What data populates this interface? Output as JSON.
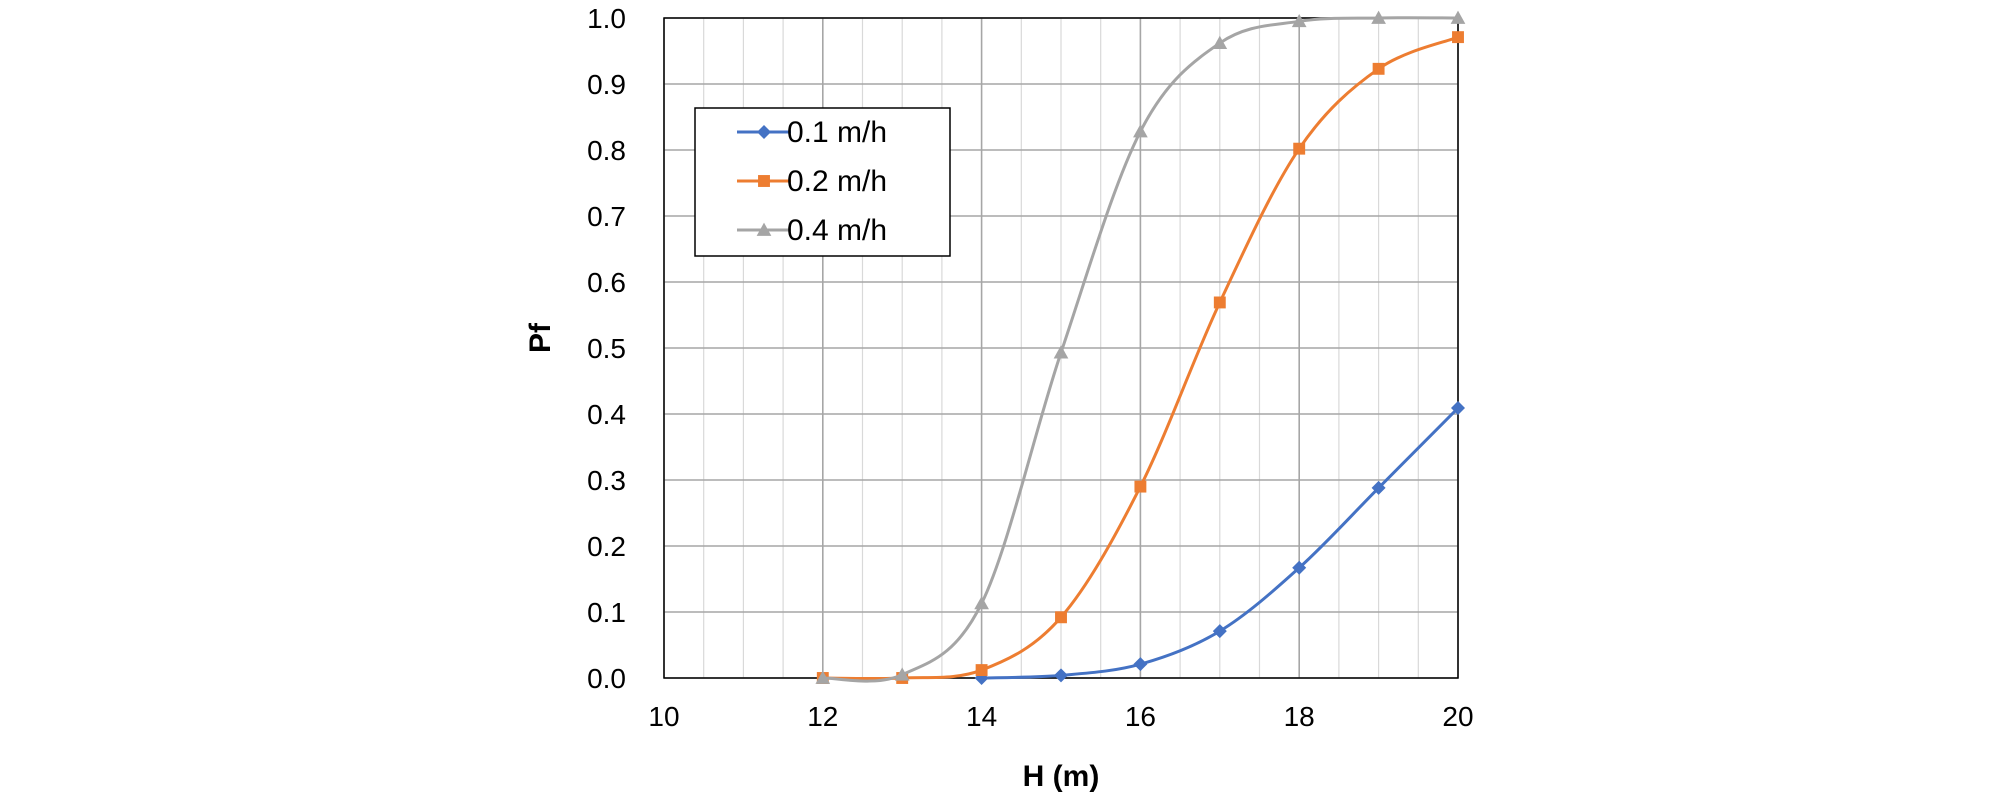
{
  "chart_data": {
    "type": "line",
    "xlabel": "H (m)",
    "ylabel": "Pf",
    "xlim": [
      10,
      20
    ],
    "ylim": [
      0,
      1
    ],
    "x_ticks": [
      "10",
      "12",
      "14",
      "16",
      "18",
      "20"
    ],
    "y_ticks": [
      "0.0",
      "0.1",
      "0.2",
      "0.3",
      "0.4",
      "0.5",
      "0.6",
      "0.7",
      "0.8",
      "0.9",
      "1.0"
    ],
    "x_minor_step": 0.5,
    "grid": true,
    "legend_position": "top-left",
    "series": [
      {
        "name": "0.1 m/h",
        "color": "#4472C4",
        "marker": "diamond",
        "x": [
          14,
          15,
          16,
          17,
          18,
          19,
          20
        ],
        "y": [
          0.0,
          0.004,
          0.021,
          0.071,
          0.167,
          0.288,
          0.409
        ]
      },
      {
        "name": "0.2 m/h",
        "color": "#ED7D31",
        "marker": "square",
        "x": [
          12,
          13,
          14,
          15,
          16,
          17,
          18,
          19,
          20
        ],
        "y": [
          0.0,
          0.0,
          0.012,
          0.092,
          0.29,
          0.569,
          0.802,
          0.923,
          0.971
        ]
      },
      {
        "name": "0.4 m/h",
        "color": "#A5A5A5",
        "marker": "triangle",
        "x": [
          12,
          13,
          14,
          15,
          16,
          17,
          18,
          19,
          20
        ],
        "y": [
          0.0,
          0.005,
          0.113,
          0.493,
          0.828,
          0.962,
          0.995,
          1.0,
          1.0
        ]
      }
    ]
  }
}
